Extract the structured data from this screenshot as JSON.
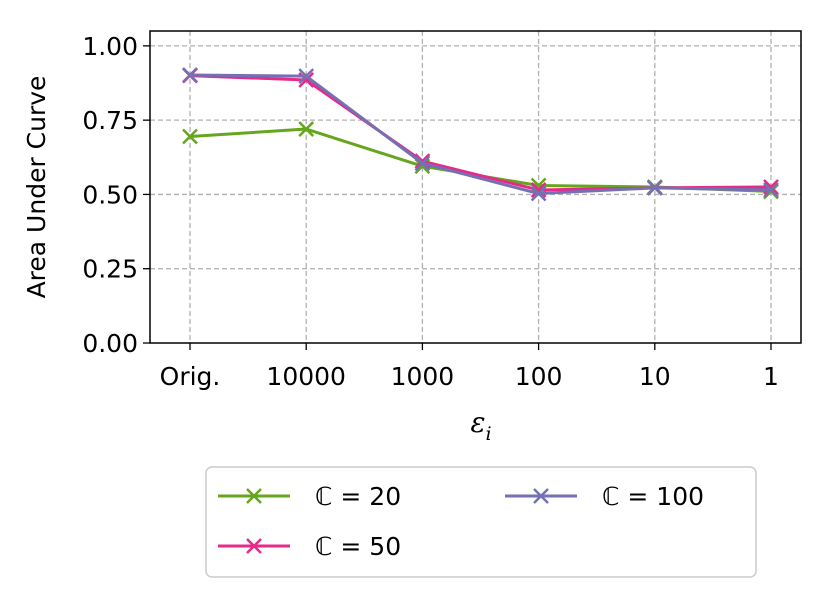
{
  "chart_data": {
    "type": "line",
    "categories": [
      "Orig.",
      "10000",
      "1000",
      "100",
      "10",
      "1"
    ],
    "xlabel_main": "ε",
    "xlabel_sub": "i",
    "ylabel": "Area Under Curve",
    "ylim": [
      0,
      1.05
    ],
    "yticks": [
      "0.00",
      "0.25",
      "0.50",
      "0.75",
      "1.00"
    ],
    "ytick_values": [
      0,
      0.25,
      0.5,
      0.75,
      1.0
    ],
    "grid": true,
    "legend_position": "below",
    "marker": "x",
    "series": [
      {
        "name": "ℂ = 20",
        "color": "#66a61e",
        "values": [
          0.695,
          0.72,
          0.595,
          0.53,
          0.525,
          0.51
        ]
      },
      {
        "name": "ℂ = 50",
        "color": "#e7298a",
        "values": [
          0.9,
          0.885,
          0.612,
          0.515,
          0.522,
          0.525
        ]
      },
      {
        "name": "ℂ = 100",
        "color": "#7570b3",
        "values": [
          0.902,
          0.898,
          0.605,
          0.503,
          0.522,
          0.515
        ]
      }
    ]
  }
}
